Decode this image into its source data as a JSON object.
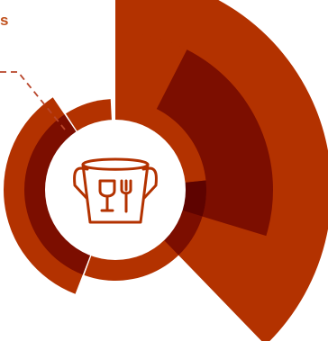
{
  "label": {
    "text": "s"
  },
  "colors": {
    "primary": "#b33200",
    "dark": "#7c0e00",
    "darker": "#5e0300",
    "label": "#c0501c",
    "connector": "#b8452a",
    "icon": "#b33200",
    "center": "#ffffff"
  },
  "icon": {
    "name": "fragile-glass-fork-icon"
  }
}
